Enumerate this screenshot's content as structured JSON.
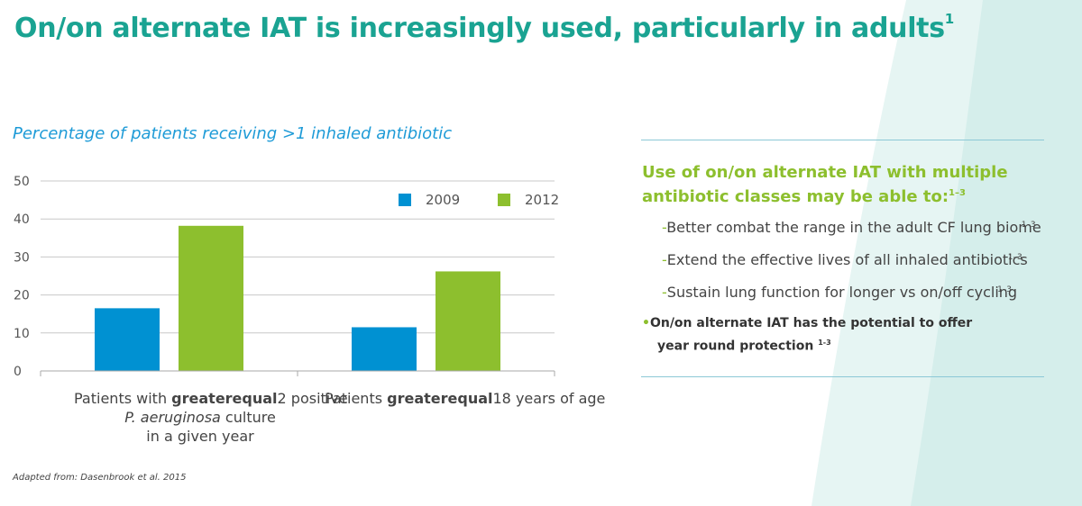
{
  "slide": {
    "title": "On/on alternate IAT is increasingly used, particularly in adults",
    "title_ref": "1",
    "source_note": "Adapted from: Dasenbrook et al. 2015"
  },
  "colors": {
    "teal": "#1aa392",
    "blue": "#0091d2",
    "green": "#8dbf2e",
    "swoosh": "#e6f5f3"
  },
  "chart_data": {
    "type": "bar",
    "title": "Percentage of patients receiving >1 inhaled antibiotic",
    "categories": [
      [
        "Patients with ",
        "greaterequal",
        "2 positive",
        "P. aeruginosa",
        " culture",
        "in a given year"
      ],
      [
        "Patients ",
        "greaterequal",
        "18 years of age"
      ]
    ],
    "series": [
      {
        "name": "2009",
        "color": "#0091d2",
        "values": [
          16.5,
          11.5
        ]
      },
      {
        "name": "2012",
        "color": "#8dbf2e",
        "values": [
          38.2,
          26.2
        ]
      }
    ],
    "y_ticks": [
      "0",
      "10",
      "20",
      "30",
      "40",
      "50"
    ],
    "ylim": [
      0,
      50
    ],
    "grid": true,
    "legend_position": "top-right"
  },
  "panel": {
    "heading": "Use of on/on alternate IAT with multiple antibiotic classes may be able to:",
    "heading_ref": "1–3",
    "items": [
      {
        "text": "Better combat the range in the adult CF lung biome",
        "ref": "1–3"
      },
      {
        "text": "Extend the effective lives of all inhaled antibiotics",
        "ref": "1–3"
      },
      {
        "text": "Sustain lung function for longer vs on/off cycling",
        "ref": "1–3"
      }
    ],
    "bullet_line1": "On/on alternate IAT has the potential to offer",
    "bullet_line2": "year round protection",
    "bullet_ref": "1-3"
  }
}
